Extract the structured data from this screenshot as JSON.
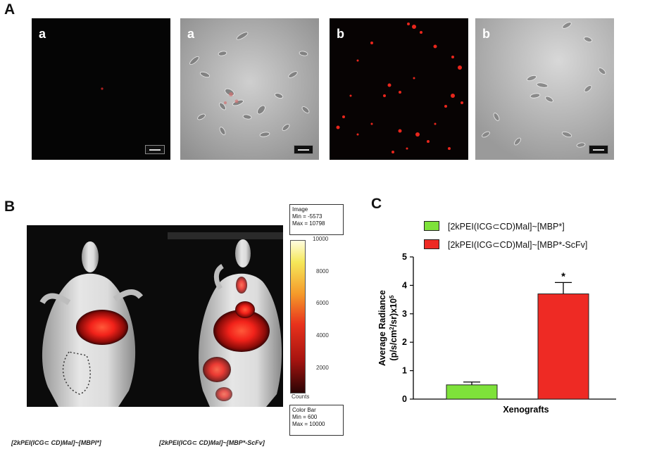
{
  "panel_a": {
    "letter": "A",
    "images": [
      {
        "sublabel": "a",
        "mode": "fluorescence-weak"
      },
      {
        "sublabel": "a",
        "mode": "brightfield"
      },
      {
        "sublabel": "b",
        "mode": "fluorescence-strong"
      },
      {
        "sublabel": "b",
        "mode": "brightfield"
      }
    ]
  },
  "panel_b": {
    "letter": "B",
    "image_box": {
      "title": "Image",
      "min": "Min = -5573",
      "max": "Max = 10798"
    },
    "colorbar_ticks": [
      "10000",
      "8000",
      "6000",
      "4000",
      "2000"
    ],
    "colorbar_unit": "Counts",
    "colorbar_box": {
      "title": "Color Bar",
      "min": "Min = 600",
      "max": "Max = 10000"
    },
    "caption_left": "[2kPEI(ICG⊂ CD)Mal]~[MBPI*]",
    "caption_right": "[2kPEI(ICG⊂ CD)Mal]~[MBP*-ScFv]"
  },
  "panel_c": {
    "letter": "C",
    "legend": [
      {
        "label": "[2kPEI(ICG⊂CD)Mal]~[MBP*]",
        "color": "#7ee23a"
      },
      {
        "label": "[2kPEI(ICG⊂CD)Mal]~[MBP*-ScFv]",
        "color": "#ee2a24"
      }
    ],
    "significance": "*"
  },
  "chart_data": {
    "type": "bar",
    "categories": [
      "[2kPEI(ICG⊂CD)Mal]~[MBP*]",
      "[2kPEI(ICG⊂CD)Mal]~[MBP*-ScFv]"
    ],
    "values": [
      0.5,
      3.7
    ],
    "errors": [
      0.1,
      0.4
    ],
    "colors": [
      "#7ee23a",
      "#ee2a24"
    ],
    "xlabel": "Xenografts",
    "ylabel_line1": "Average Radiance",
    "ylabel_line2_pre": "(p/s/cm",
    "ylabel_line2_sup1": "2",
    "ylabel_line2_mid": "/sr)x10",
    "ylabel_line2_sup2": "5",
    "ylim": [
      0,
      5
    ],
    "yticks": [
      "0",
      "1",
      "2",
      "3",
      "4",
      "5"
    ],
    "ytick_values": [
      0,
      1,
      2,
      3,
      4,
      5
    ],
    "grid": false
  }
}
